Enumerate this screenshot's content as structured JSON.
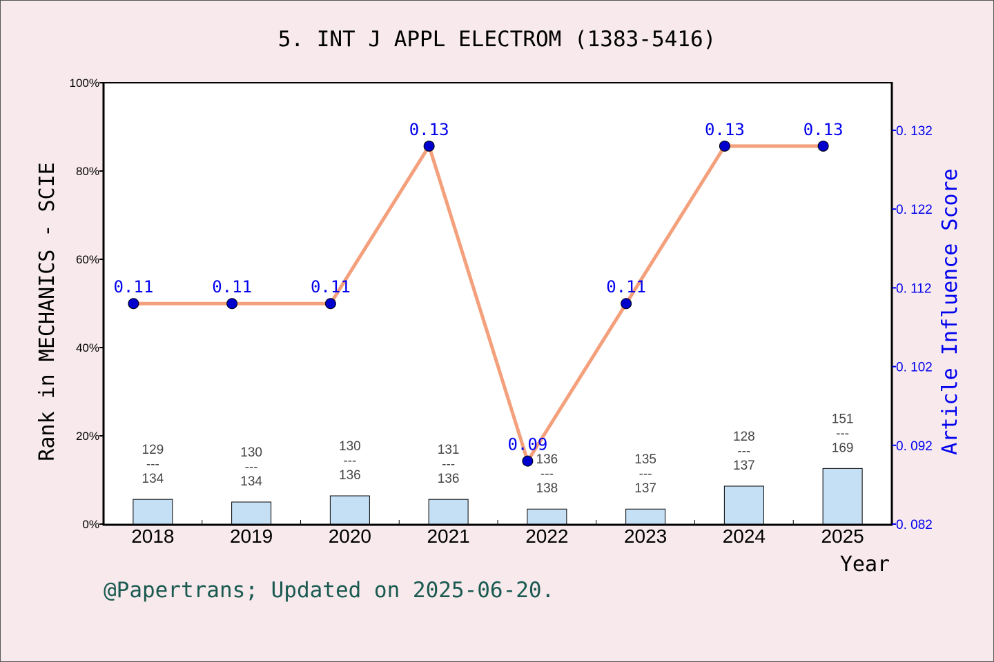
{
  "chart_data": {
    "type": "bar+line",
    "title": "5.  INT J APPL ELECTROM (1383-5416)",
    "xlabel": "Year",
    "ylabel_left": "Rank in MECHANICS - SCIE",
    "ylabel_right": "Article Influence Score",
    "categories": [
      "2018",
      "2019",
      "2020",
      "2021",
      "2022",
      "2023",
      "2024",
      "2025"
    ],
    "bars": {
      "values_percent": [
        5.6,
        5.0,
        6.4,
        5.6,
        3.4,
        3.4,
        8.6,
        12.6
      ],
      "rank": [
        129,
        130,
        130,
        131,
        136,
        135,
        128,
        151
      ],
      "total": [
        134,
        134,
        136,
        136,
        138,
        137,
        137,
        169
      ],
      "color": "#c5dff5"
    },
    "line": {
      "values": [
        0.11,
        0.11,
        0.11,
        0.13,
        0.09,
        0.11,
        0.13,
        0.13
      ],
      "labels": [
        "0.11",
        "0.11",
        "0.11",
        "0.13",
        "0.09",
        "0.11",
        "0.13",
        "0.13"
      ],
      "color": "#f4a07c",
      "marker_color": "#0000cc"
    },
    "ylim_left": [
      0,
      100
    ],
    "yticks_left": [
      "0%",
      "20%",
      "40%",
      "60%",
      "80%",
      "100%"
    ],
    "ylim_right": [
      0.082,
      0.138
    ],
    "yticks_right": [
      "0. 082",
      "0. 092",
      "0. 102",
      "0. 112",
      "0. 122",
      "0. 132"
    ],
    "grid": false,
    "footnote": "@Papertrans; Updated on 2025-06-20."
  }
}
